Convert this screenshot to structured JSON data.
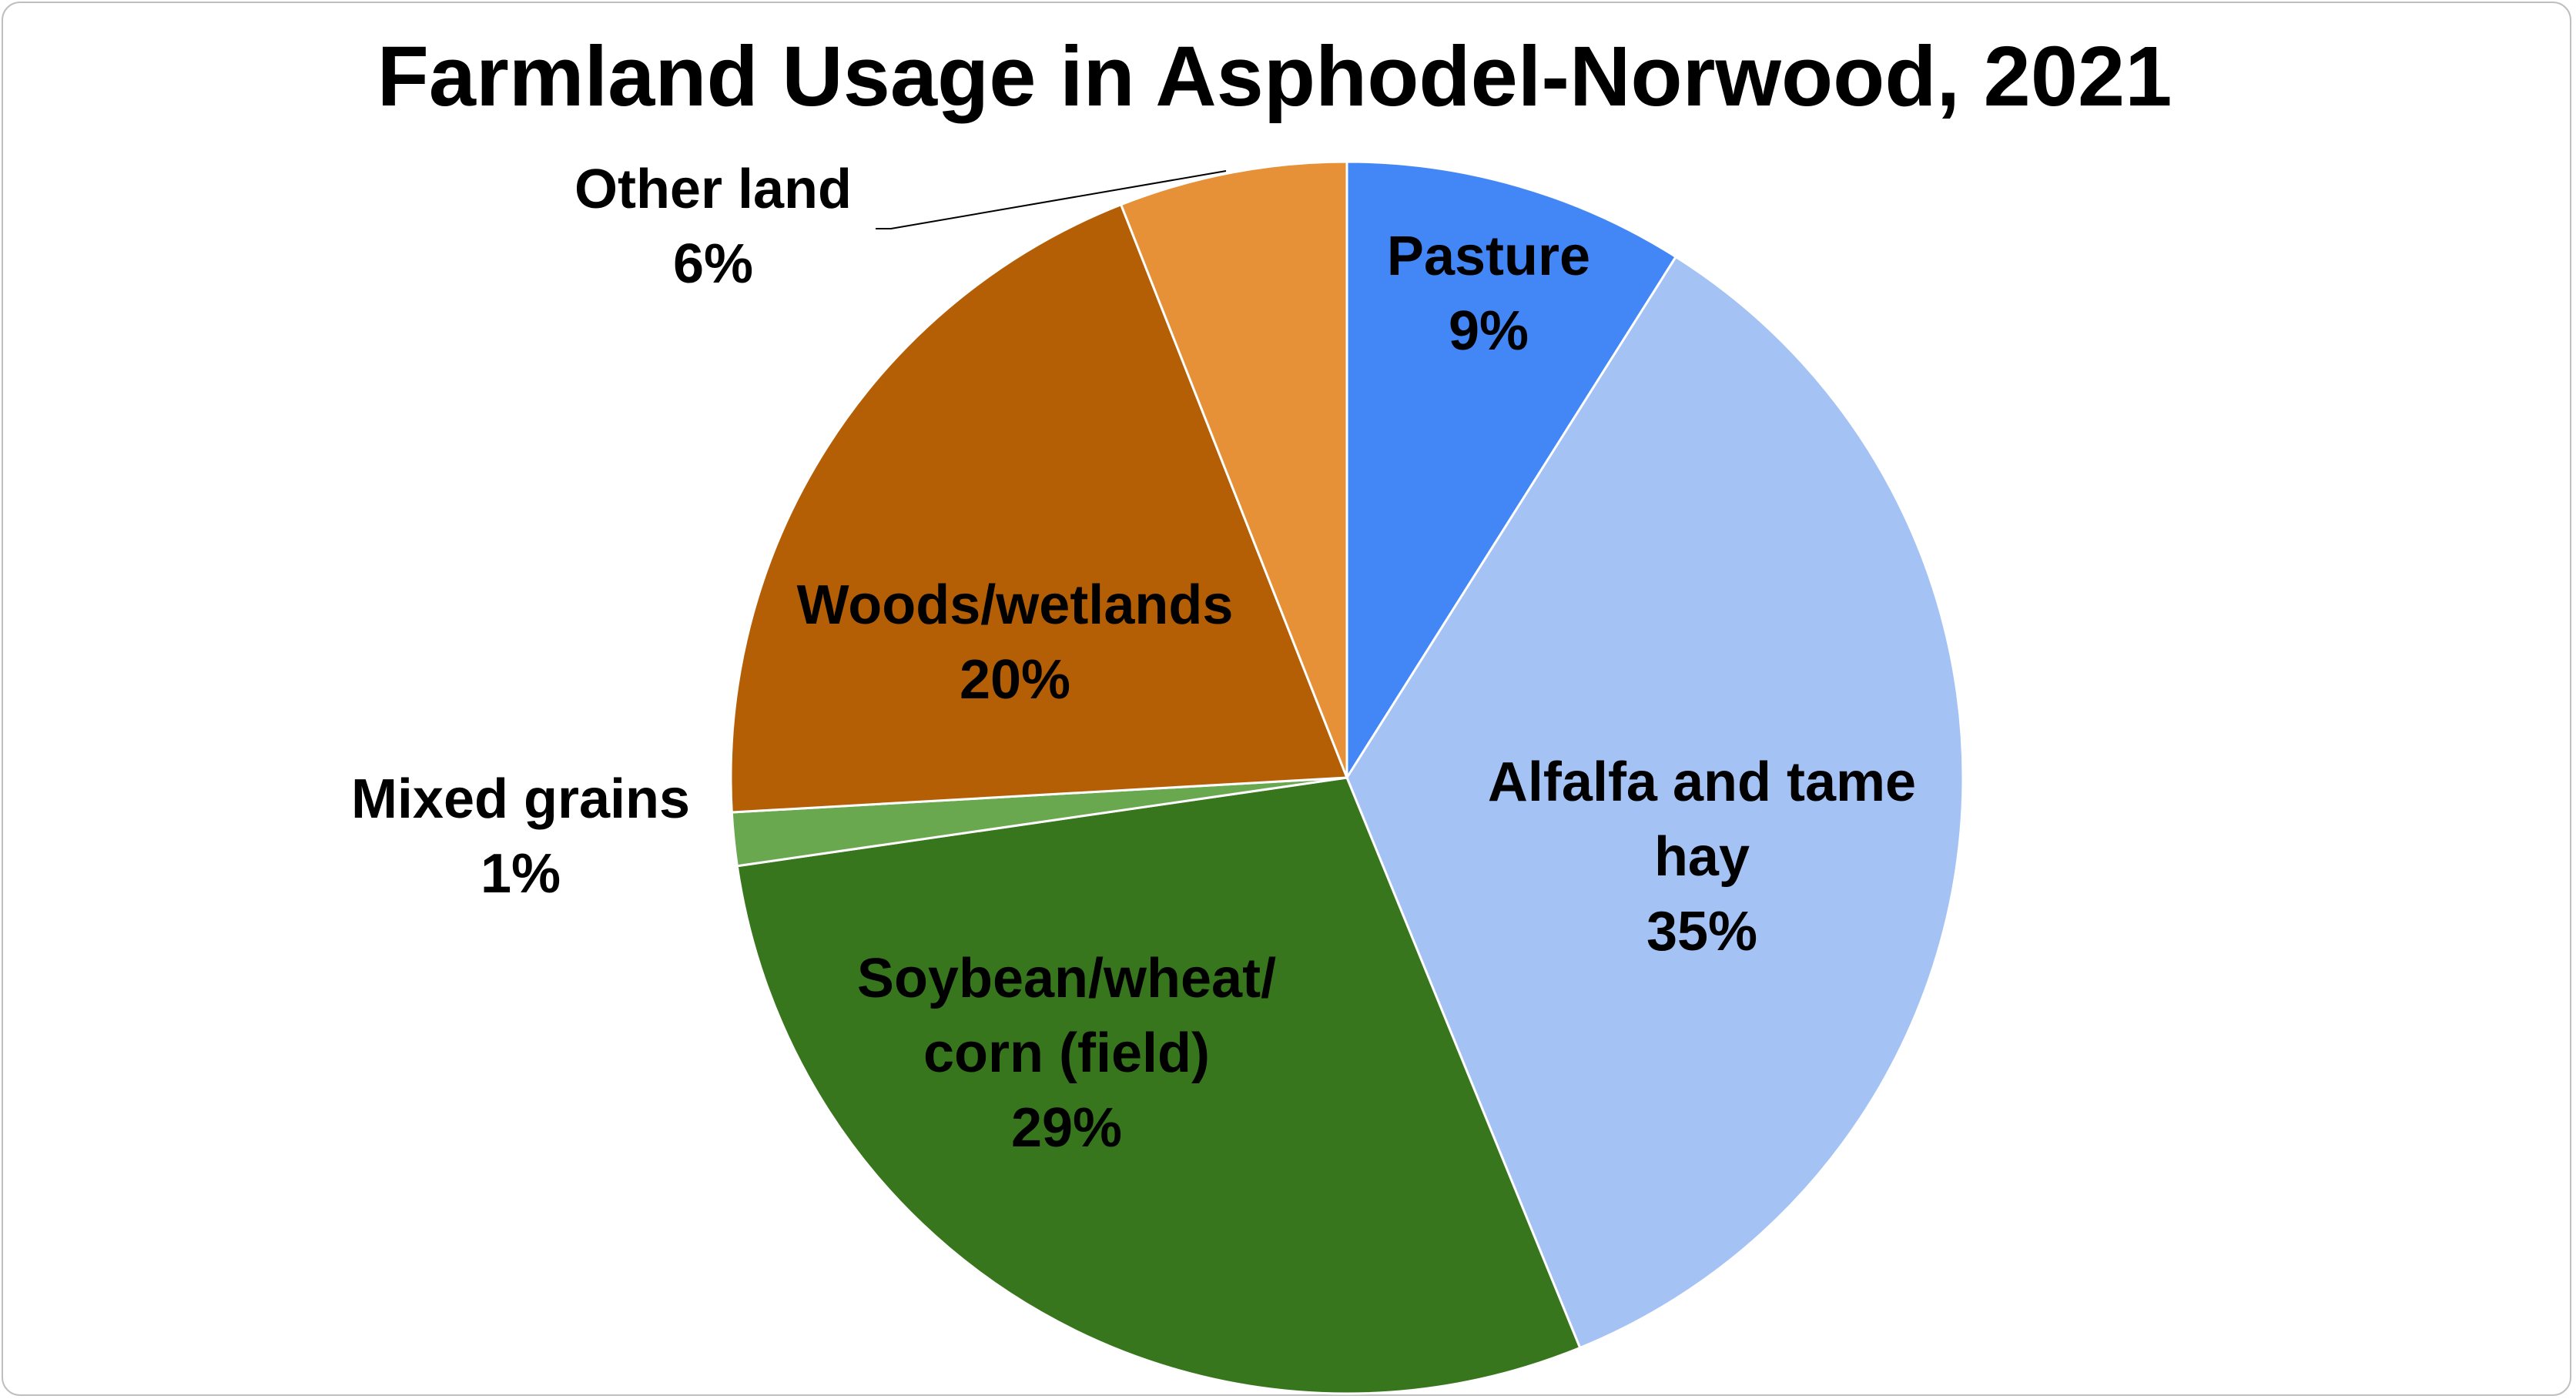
{
  "chart_data": {
    "type": "pie",
    "title": "Farmland Usage in Asphodel-Norwood, 2021",
    "start_angle_deg": 0,
    "direction": "clockwise",
    "slices": [
      {
        "name": "Pasture",
        "value": 9,
        "display": "9%",
        "color": "#4287f5",
        "label_lines": [
          "Pasture"
        ]
      },
      {
        "name": "Alfalfa and tame hay",
        "value": 35,
        "display": "35%",
        "color": "#a5c2f4",
        "label_lines": [
          "Alfalfa and tame",
          "hay"
        ]
      },
      {
        "name": "Soybean/wheat/corn (field)",
        "value": 29,
        "display": "29%",
        "color": "#38761d",
        "label_lines": [
          "Soybean/wheat/",
          "corn (field)"
        ]
      },
      {
        "name": "Mixed grains",
        "value": 1.4,
        "display": "1%",
        "color": "#6aa84f",
        "label_lines": [
          "Mixed grains"
        ]
      },
      {
        "name": "Woods/wetlands",
        "value": 20,
        "display": "20%",
        "color": "#b45f06",
        "label_lines": [
          "Woods/wetlands"
        ]
      },
      {
        "name": "Other land",
        "value": 6,
        "display": "6%",
        "color": "#e69138",
        "label_lines": [
          "Other land"
        ]
      }
    ],
    "legend": "none",
    "data_labels": "category and percentage"
  }
}
